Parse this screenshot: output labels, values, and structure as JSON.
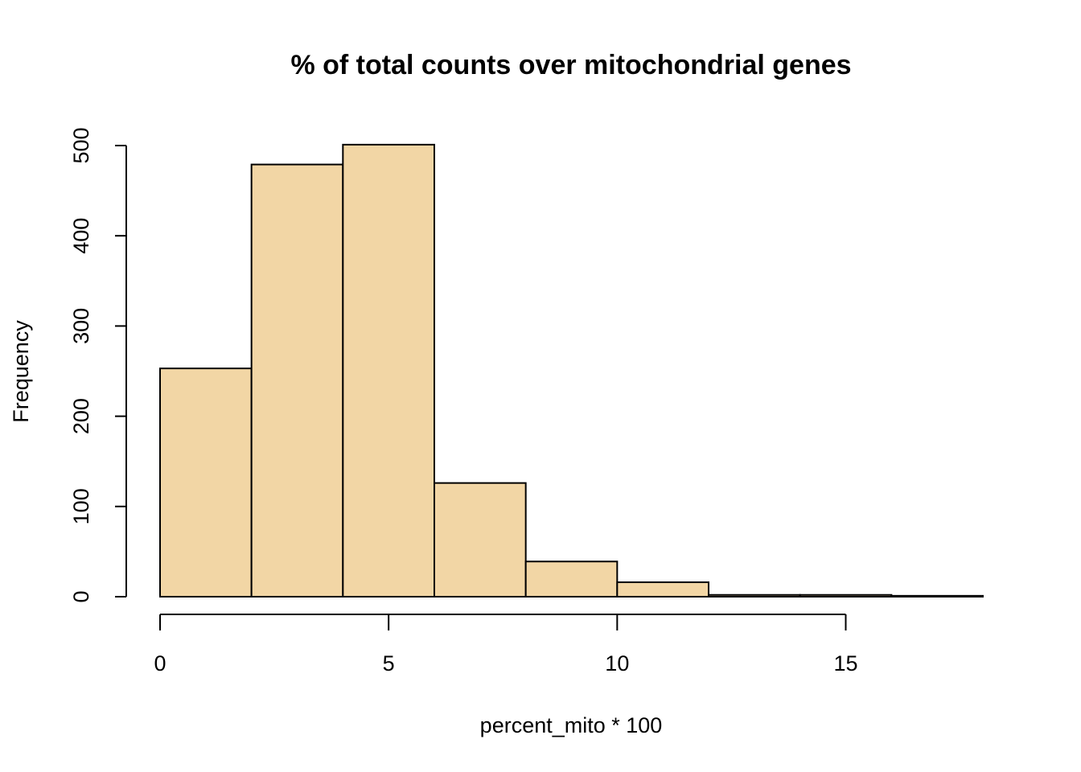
{
  "chart_data": {
    "type": "bar",
    "title": "% of total counts over mitochondrial genes",
    "xlabel": "percent_mito * 100",
    "ylabel": "Frequency",
    "bins": [
      {
        "start": 0,
        "end": 2,
        "count": 253
      },
      {
        "start": 2,
        "end": 4,
        "count": 479
      },
      {
        "start": 4,
        "end": 6,
        "count": 501
      },
      {
        "start": 6,
        "end": 8,
        "count": 126
      },
      {
        "start": 8,
        "end": 10,
        "count": 39
      },
      {
        "start": 10,
        "end": 12,
        "count": 16
      },
      {
        "start": 12,
        "end": 14,
        "count": 2
      },
      {
        "start": 14,
        "end": 16,
        "count": 2
      },
      {
        "start": 16,
        "end": 18,
        "count": 1
      }
    ],
    "xlim": [
      0,
      18
    ],
    "ylim": [
      0,
      500
    ],
    "x_ticks": [
      0,
      5,
      10,
      15
    ],
    "y_ticks": [
      0,
      100,
      200,
      300,
      400,
      500
    ],
    "bar_color": "#F2D6A5",
    "grid": false
  }
}
